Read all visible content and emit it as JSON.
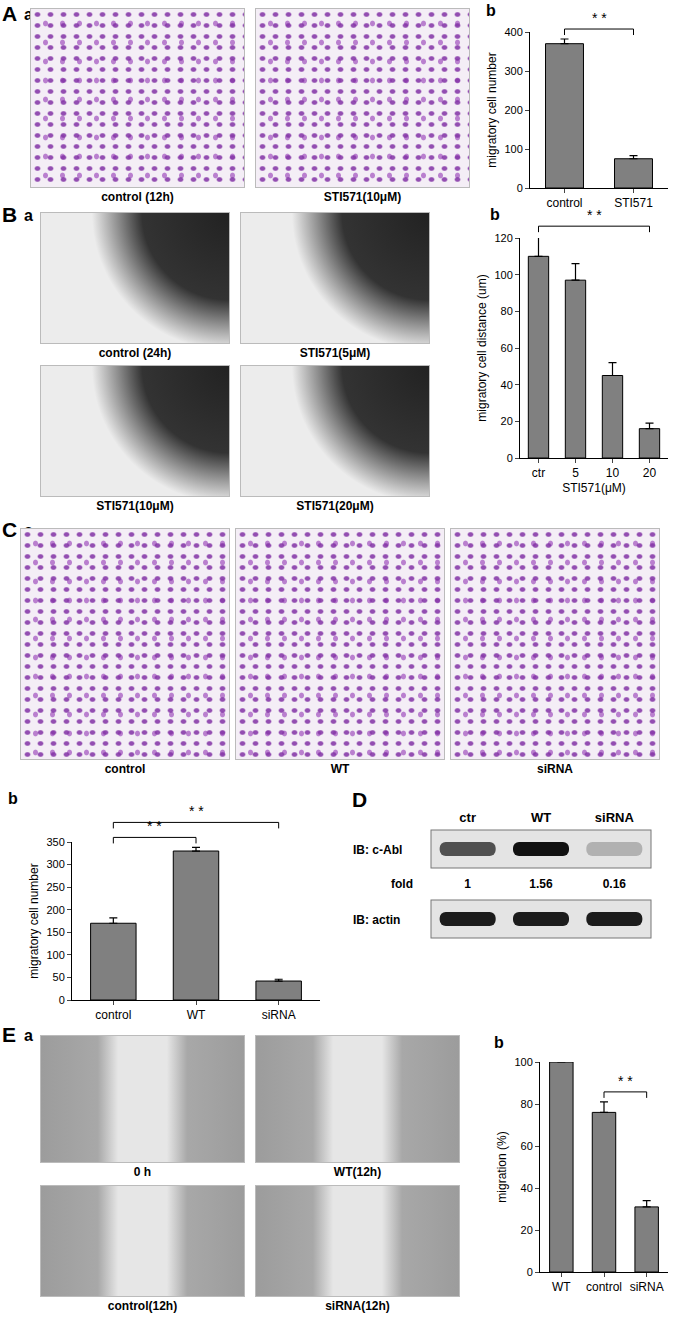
{
  "image_panels": [
    {
      "panel": "A",
      "label": "a",
      "images": [
        "control (12h)",
        "STI571(10μM)"
      ]
    },
    {
      "panel": "B",
      "label": "a",
      "images": [
        "control (24h)",
        "STI571(5μM)",
        "STI571(10μM)",
        "STI571(20μM)"
      ]
    },
    {
      "panel": "C",
      "label": "a",
      "images": [
        "control",
        "WT",
        "siRNA"
      ]
    },
    {
      "panel": "E",
      "label": "a",
      "images": [
        "0 h",
        "WT(12h)",
        "control(12h)",
        "siRNA(12h)"
      ]
    }
  ],
  "blot": {
    "panel": "D",
    "lanes": [
      "ctr",
      "WT",
      "siRNA"
    ],
    "rows": [
      {
        "label": "IB: c-Abl",
        "fold_label": "fold",
        "fold": [
          1,
          1.56,
          0.16
        ]
      },
      {
        "label": "IB: actin"
      }
    ]
  },
  "chart_data": [
    {
      "label": "b",
      "type": "bar",
      "categories": [
        "control",
        "STI571"
      ],
      "values": [
        370,
        75
      ],
      "errors": [
        12,
        8
      ],
      "ylabel": "migratory cell number",
      "ylim": [
        0,
        400
      ],
      "yticks": [
        0,
        100,
        200,
        300,
        400
      ],
      "color": "#808080",
      "significance": [
        {
          "from": "control",
          "to": "STI571",
          "label": "* *"
        }
      ]
    },
    {
      "label": "b",
      "type": "bar",
      "categories": [
        "ctr",
        "5",
        "10",
        "20"
      ],
      "values": [
        110,
        97,
        45,
        16
      ],
      "errors": [
        11,
        9,
        7,
        3
      ],
      "xlabel": "STI571(μM)",
      "ylabel": "migratory cell distance (um)",
      "ylim": [
        0,
        120
      ],
      "yticks": [
        0,
        20,
        40,
        60,
        80,
        100,
        120
      ],
      "color": "#808080",
      "significance": [
        {
          "from": "ctr",
          "to": "20",
          "label": "* *"
        }
      ]
    },
    {
      "label": "b",
      "type": "bar",
      "categories": [
        "control",
        "WT",
        "siRNA"
      ],
      "values": [
        170,
        330,
        42
      ],
      "errors": [
        12,
        8,
        4
      ],
      "ylabel": "migratory cell number",
      "ylim": [
        0,
        350
      ],
      "yticks": [
        0,
        50,
        100,
        150,
        200,
        250,
        300,
        350
      ],
      "color": "#808080",
      "significance": [
        {
          "from": "control",
          "to": "WT",
          "label": "* *"
        },
        {
          "from": "control",
          "to": "siRNA",
          "label": "* *"
        }
      ]
    },
    {
      "label": "b",
      "type": "bar",
      "categories": [
        "WT",
        "control",
        "siRNA"
      ],
      "values": [
        100,
        76,
        31
      ],
      "errors": [
        null,
        5,
        3
      ],
      "ylabel": "migration (%)",
      "ylim": [
        0,
        100
      ],
      "yticks": [
        0,
        20,
        40,
        60,
        80,
        100
      ],
      "color": "#808080",
      "significance": [
        {
          "from": "control",
          "to": "siRNA",
          "label": "* *"
        }
      ]
    }
  ]
}
